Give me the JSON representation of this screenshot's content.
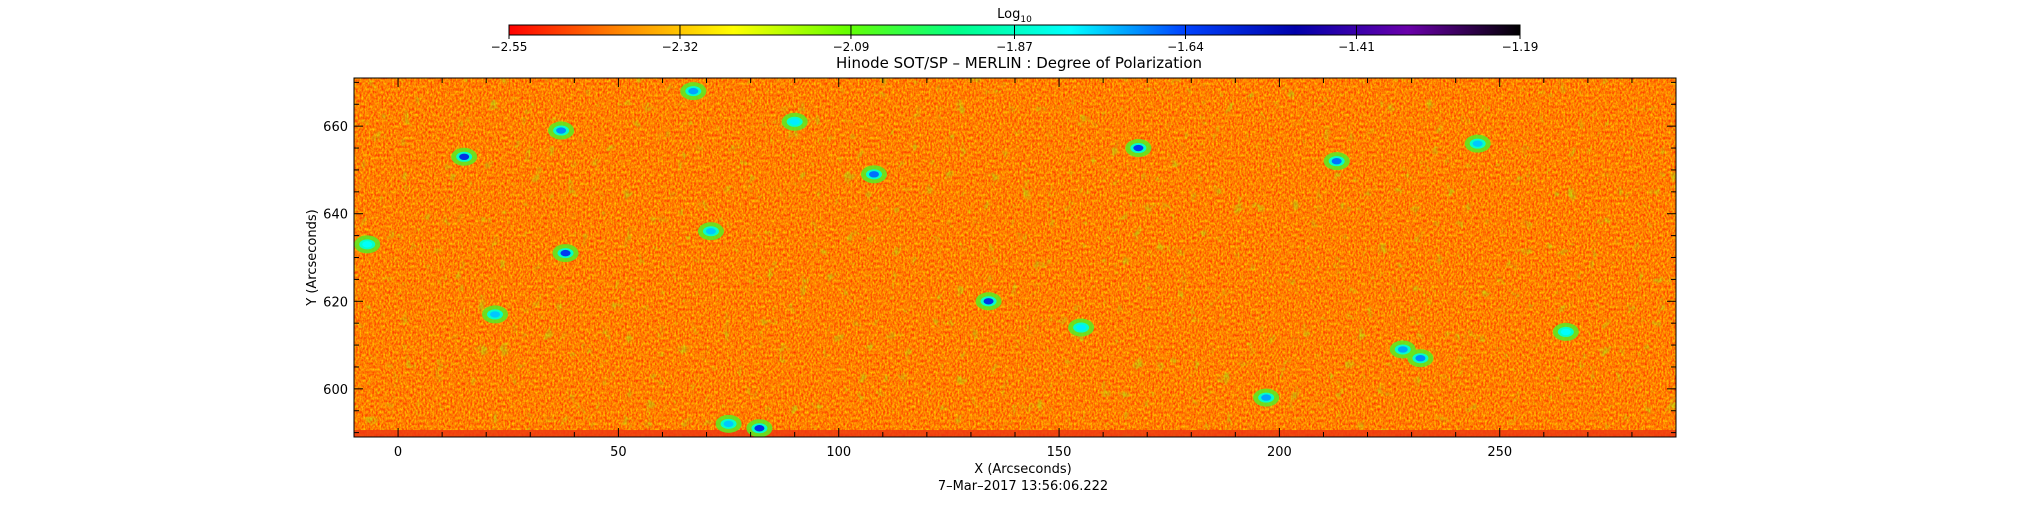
{
  "chart_data": {
    "type": "heatmap",
    "title": "Hinode SOT/SP – MERLIN : Degree of Polarization",
    "xlabel": "X (Arcseconds)",
    "ylabel": "Y (Arcseconds)",
    "xlim": [
      -10,
      290
    ],
    "ylim": [
      589,
      671
    ],
    "x_ticks": [
      0,
      50,
      100,
      150,
      200,
      250
    ],
    "y_ticks": [
      600,
      620,
      640,
      660
    ],
    "colorbar": {
      "label": "Log",
      "label_subscript": "10",
      "range": [
        -2.55,
        -1.19
      ],
      "tick_labels": [
        "-2.55",
        "-2.32",
        "-2.09",
        "-1.87",
        "-1.64",
        "-1.41",
        "-1.19"
      ],
      "colormap": [
        "#ff0000",
        "#ff8800",
        "#ffff00",
        "#66ff00",
        "#00ff88",
        "#00ffff",
        "#0044ff",
        "#0000aa",
        "#6a00aa",
        "#000000"
      ]
    },
    "background_level": -2.45,
    "grid": false,
    "strong_polarization_patches": [
      {
        "x": 15,
        "y": 653,
        "level": -1.6
      },
      {
        "x": 38,
        "y": 631,
        "level": -1.62
      },
      {
        "x": 37,
        "y": 659,
        "level": -1.7
      },
      {
        "x": 67,
        "y": 668,
        "level": -1.72
      },
      {
        "x": 108,
        "y": 649,
        "level": -1.68
      },
      {
        "x": 134,
        "y": 620,
        "level": -1.6
      },
      {
        "x": 168,
        "y": 655,
        "level": -1.62
      },
      {
        "x": 213,
        "y": 652,
        "level": -1.68
      },
      {
        "x": 82,
        "y": 591,
        "level": -1.6
      },
      {
        "x": 75,
        "y": 592,
        "level": -1.75
      },
      {
        "x": 232,
        "y": 607,
        "level": -1.7
      },
      {
        "x": 228,
        "y": 609,
        "level": -1.72
      },
      {
        "x": 245,
        "y": 656,
        "level": -1.75
      },
      {
        "x": 22,
        "y": 617,
        "level": -1.75
      },
      {
        "x": 71,
        "y": 636,
        "level": -1.75
      },
      {
        "x": 90,
        "y": 661,
        "level": -1.78
      },
      {
        "x": 197,
        "y": 598,
        "level": -1.72
      },
      {
        "x": 155,
        "y": 614,
        "level": -1.78
      },
      {
        "x": 265,
        "y": 613,
        "level": -1.8
      },
      {
        "x": -7,
        "y": 633,
        "level": -1.8
      }
    ]
  },
  "footer": {
    "timestamp": "7–Mar–2017 13:56:06.222"
  }
}
